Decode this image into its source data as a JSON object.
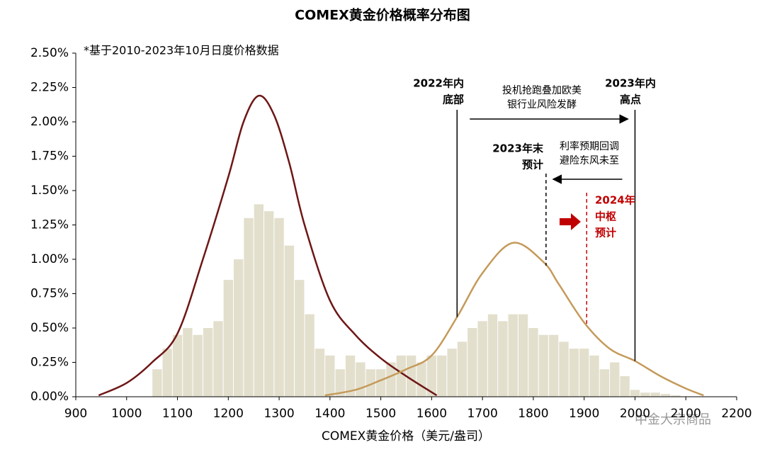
{
  "chart_data": {
    "type": "histogram",
    "title": "COMEX黄金价格概率分布图",
    "subtitle": "*基于2010-2023年10月日度价格数据",
    "x_label": "COMEX黄金价格（美元/盎司）",
    "bar_color": "#e3dfcd",
    "bins": [
      1050,
      1070,
      1090,
      1110,
      1130,
      1150,
      1170,
      1190,
      1210,
      1230,
      1250,
      1270,
      1290,
      1310,
      1330,
      1350,
      1370,
      1390,
      1410,
      1430,
      1450,
      1470,
      1490,
      1510,
      1530,
      1550,
      1570,
      1590,
      1610,
      1630,
      1650,
      1670,
      1690,
      1710,
      1730,
      1750,
      1770,
      1790,
      1810,
      1830,
      1850,
      1870,
      1890,
      1910,
      1930,
      1950,
      1970,
      1990,
      2010,
      2030,
      2050,
      2070,
      2090
    ],
    "values": [
      0.2,
      0.35,
      0.45,
      0.5,
      0.45,
      0.5,
      0.55,
      0.85,
      1.0,
      1.3,
      1.4,
      1.35,
      1.3,
      1.1,
      0.85,
      0.6,
      0.35,
      0.3,
      0.2,
      0.3,
      0.25,
      0.2,
      0.2,
      0.25,
      0.3,
      0.3,
      0.25,
      0.3,
      0.3,
      0.35,
      0.4,
      0.5,
      0.55,
      0.6,
      0.55,
      0.6,
      0.6,
      0.5,
      0.45,
      0.45,
      0.4,
      0.35,
      0.35,
      0.3,
      0.2,
      0.25,
      0.15,
      0.05,
      0.03,
      0.03,
      0.02,
      0.01
    ],
    "series": [
      {
        "color": "#6e1616",
        "x": [
          945,
          1000,
          1050,
          1100,
          1150,
          1200,
          1230,
          1260,
          1290,
          1320,
          1350,
          1400,
          1450,
          1500,
          1550,
          1610
        ],
        "values": [
          0.01,
          0.1,
          0.25,
          0.46,
          1.0,
          1.6,
          2.0,
          2.19,
          2.05,
          1.7,
          1.25,
          0.7,
          0.45,
          0.28,
          0.15,
          0.01
        ]
      },
      {
        "color": "#c49a5a",
        "x": [
          1390,
          1450,
          1500,
          1550,
          1600,
          1650,
          1700,
          1760,
          1820,
          1850,
          1900,
          1950,
          2000,
          2050,
          2100,
          2135
        ],
        "values": [
          0.01,
          0.05,
          0.12,
          0.2,
          0.3,
          0.58,
          0.9,
          1.12,
          0.98,
          0.82,
          0.54,
          0.35,
          0.26,
          0.15,
          0.06,
          0.01
        ]
      }
    ],
    "xlim": [
      900,
      2200
    ],
    "xticks": [
      900,
      1000,
      1100,
      1200,
      1300,
      1400,
      1500,
      1600,
      1700,
      1800,
      1900,
      2000,
      2100,
      2200
    ],
    "ylim": [
      0,
      2.5
    ],
    "yticks": [
      {
        "value": 0,
        "label": "0.00%"
      },
      {
        "value": 0.25,
        "label": "0.25%"
      },
      {
        "value": 0.5,
        "label": "0.50%"
      },
      {
        "value": 0.75,
        "label": "0.75%"
      },
      {
        "value": 1,
        "label": "1.00%"
      },
      {
        "value": 1.25,
        "label": "1.25%"
      },
      {
        "value": 1.5,
        "label": "1.50%"
      },
      {
        "value": 1.75,
        "label": "1.75%"
      },
      {
        "value": 2,
        "label": "2.00%"
      },
      {
        "value": 2.25,
        "label": "2.25%"
      },
      {
        "value": 2.5,
        "label": "2.50%"
      }
    ],
    "annotations": [
      {
        "x": 1650,
        "lines": [
          "2022年内",
          "底部"
        ],
        "style": "solid",
        "color": "#000000"
      },
      {
        "x": 2000,
        "lines": [
          "2023年内",
          "高点"
        ],
        "style": "solid",
        "color": "#000000"
      },
      {
        "x": 1825,
        "lines": [
          "2023年末",
          "预计"
        ],
        "style": "dashed",
        "color": "#000000"
      },
      {
        "x": 1905,
        "lines": [
          "2024年",
          "中枢",
          "预计"
        ],
        "style": "dashed",
        "color": "#c00000"
      }
    ],
    "arrows": [
      {
        "from": 1650,
        "to": 2000,
        "lines": [
          "投机抢跑叠加欧美",
          "银行业风险发酵"
        ]
      },
      {
        "from": 2000,
        "to": 1825,
        "lines": [
          "利率预期回调",
          "避险东风未至"
        ]
      }
    ],
    "watermark": "中金大宗商品"
  }
}
